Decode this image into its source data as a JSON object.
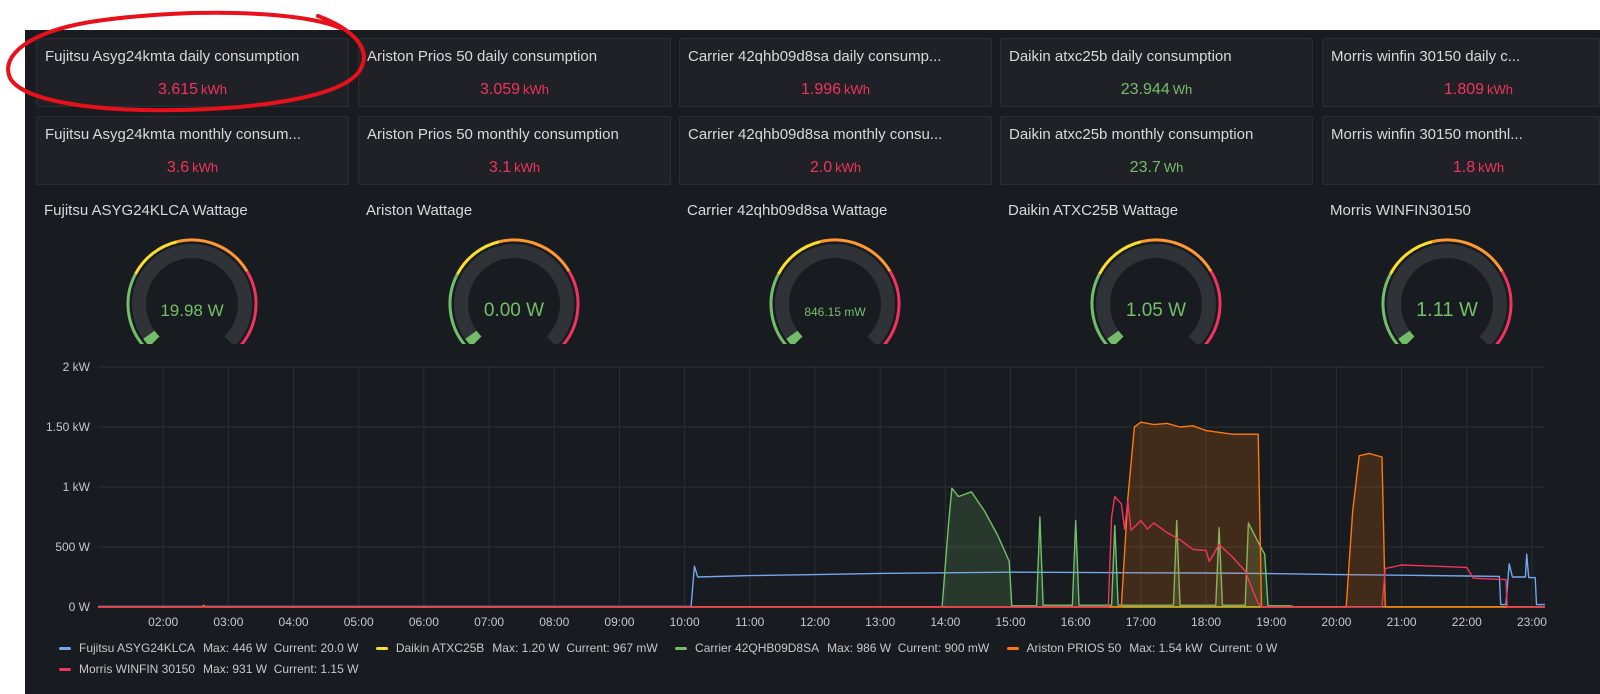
{
  "stats_daily": [
    {
      "title": "Fujitsu Asyg24kmta daily consumption",
      "value": "3.615",
      "unit": "kWh",
      "color": "#f2335e"
    },
    {
      "title": "Ariston Prios 50 daily consumption",
      "value": "3.059",
      "unit": "kWh",
      "color": "#f2335e"
    },
    {
      "title": "Carrier 42qhb09d8sa daily consump...",
      "value": "1.996",
      "unit": "kWh",
      "color": "#f2335e"
    },
    {
      "title": "Daikin atxc25b daily consumption",
      "value": "23.944",
      "unit": "Wh",
      "color": "#73bf69"
    },
    {
      "title": "Morris winfin 30150 daily c...",
      "value": "1.809",
      "unit": "kWh",
      "color": "#f2335e"
    }
  ],
  "stats_monthly": [
    {
      "title": "Fujitsu Asyg24kmta monthly consum...",
      "value": "3.6",
      "unit": "kWh",
      "color": "#f2335e"
    },
    {
      "title": "Ariston Prios 50 monthly consumption",
      "value": "3.1",
      "unit": "kWh",
      "color": "#f2335e"
    },
    {
      "title": "Carrier 42qhb09d8sa monthly consu...",
      "value": "2.0",
      "unit": "kWh",
      "color": "#f2335e"
    },
    {
      "title": "Daikin atxc25b monthly consumption",
      "value": "23.7",
      "unit": "Wh",
      "color": "#73bf69"
    },
    {
      "title": "Morris winfin 30150 monthl...",
      "value": "1.8",
      "unit": "kWh",
      "color": "#f2335e"
    }
  ],
  "gauges": [
    {
      "title": "Fujitsu ASYG24KLCA Wattage",
      "value": "19.98 W",
      "level": 0.02
    },
    {
      "title": "Ariston Wattage",
      "value": "0.00 W",
      "level": 0.0
    },
    {
      "title": "Carrier 42qhb09d8sa Wattage",
      "value": "846.15 mW",
      "level": 0.01
    },
    {
      "title": "Daikin ATXC25B Wattage",
      "value": "1.05 W",
      "level": 0.01
    },
    {
      "title": "Morris WINFIN30150",
      "value": "1.11 W",
      "level": 0.01
    }
  ],
  "gauge_colors": {
    "value_text": "#73bf69",
    "track": "#2f3237",
    "low": "#73bf69",
    "mid": "#fade2a",
    "high": "#ff9830",
    "max": "#f2335e"
  },
  "chart_data": {
    "type": "line",
    "x_ticks": [
      "02:00",
      "03:00",
      "04:00",
      "05:00",
      "06:00",
      "07:00",
      "08:00",
      "09:00",
      "10:00",
      "11:00",
      "12:00",
      "13:00",
      "14:00",
      "15:00",
      "16:00",
      "17:00",
      "18:00",
      "19:00",
      "20:00",
      "21:00",
      "22:00",
      "23:00"
    ],
    "y_ticks": [
      "0 W",
      "500 W",
      "1 kW",
      "1.50 kW",
      "2 kW"
    ],
    "x_range_hours": [
      1.0,
      23.2
    ],
    "ylim_watts": [
      0,
      2000
    ],
    "series": [
      {
        "name": "Fujitsu ASYG24KLCA",
        "color": "#73a7f2",
        "fill": false,
        "max": "446 W",
        "current": "20.0 W",
        "points": [
          [
            1.0,
            5
          ],
          [
            10.1,
            5
          ],
          [
            10.15,
            340
          ],
          [
            10.2,
            250
          ],
          [
            11,
            262
          ],
          [
            12,
            270
          ],
          [
            13,
            280
          ],
          [
            14,
            285
          ],
          [
            15,
            290
          ],
          [
            16,
            288
          ],
          [
            17,
            285
          ],
          [
            18,
            283
          ],
          [
            19,
            278
          ],
          [
            20,
            270
          ],
          [
            21,
            265
          ],
          [
            22,
            258
          ],
          [
            22.5,
            255
          ],
          [
            22.52,
            20
          ],
          [
            22.6,
            20
          ],
          [
            22.65,
            360
          ],
          [
            22.7,
            250
          ],
          [
            22.9,
            250
          ],
          [
            22.92,
            440
          ],
          [
            22.95,
            245
          ],
          [
            23.05,
            245
          ],
          [
            23.07,
            20
          ],
          [
            23.2,
            20
          ]
        ]
      },
      {
        "name": "Daikin ATXC25B",
        "color": "#fade2a",
        "fill": false,
        "max": "1.20 W",
        "current": "967 mW",
        "points": [
          [
            1.0,
            1
          ],
          [
            23.2,
            1
          ]
        ]
      },
      {
        "name": "Carrier 42QHB09D8SA",
        "color": "#73bf69",
        "fill": true,
        "max": "986 W",
        "current": "900 mW",
        "points": [
          [
            1.0,
            2
          ],
          [
            13.95,
            2
          ],
          [
            14.05,
            700
          ],
          [
            14.1,
            990
          ],
          [
            14.2,
            920
          ],
          [
            14.4,
            960
          ],
          [
            14.6,
            800
          ],
          [
            14.8,
            600
          ],
          [
            14.9,
            480
          ],
          [
            14.98,
            380
          ],
          [
            15.02,
            10
          ],
          [
            15.4,
            10
          ],
          [
            15.45,
            750
          ],
          [
            15.5,
            15
          ],
          [
            15.95,
            15
          ],
          [
            16.0,
            720
          ],
          [
            16.05,
            15
          ],
          [
            16.55,
            15
          ],
          [
            16.6,
            680
          ],
          [
            16.65,
            15
          ],
          [
            17.5,
            15
          ],
          [
            17.55,
            720
          ],
          [
            17.6,
            15
          ],
          [
            18.15,
            15
          ],
          [
            18.2,
            660
          ],
          [
            18.25,
            15
          ],
          [
            18.6,
            15
          ],
          [
            18.65,
            700
          ],
          [
            18.8,
            540
          ],
          [
            18.9,
            440
          ],
          [
            18.95,
            10
          ],
          [
            19.3,
            10
          ],
          [
            19.35,
            2
          ],
          [
            23.2,
            2
          ]
        ]
      },
      {
        "name": "Ariston PRIOS 50",
        "color": "#ff780a",
        "fill": true,
        "max": "1.54 kW",
        "current": "0 W",
        "points": [
          [
            1.0,
            0
          ],
          [
            2.6,
            0
          ],
          [
            2.62,
            15
          ],
          [
            2.65,
            0
          ],
          [
            16.7,
            0
          ],
          [
            16.8,
            900
          ],
          [
            16.9,
            1500
          ],
          [
            17.0,
            1540
          ],
          [
            17.2,
            1520
          ],
          [
            17.4,
            1530
          ],
          [
            17.6,
            1500
          ],
          [
            17.8,
            1510
          ],
          [
            18.0,
            1470
          ],
          [
            18.4,
            1440
          ],
          [
            18.8,
            1440
          ],
          [
            18.85,
            0
          ],
          [
            20.15,
            0
          ],
          [
            20.25,
            800
          ],
          [
            20.35,
            1260
          ],
          [
            20.5,
            1280
          ],
          [
            20.7,
            1250
          ],
          [
            20.75,
            0
          ],
          [
            23.2,
            0
          ]
        ]
      },
      {
        "name": "Morris WINFIN 30150",
        "color": "#f2335e",
        "fill": false,
        "max": "931 W",
        "current": "1.15 W",
        "points": [
          [
            1.0,
            1
          ],
          [
            16.5,
            1
          ],
          [
            16.55,
            750
          ],
          [
            16.6,
            920
          ],
          [
            16.7,
            860
          ],
          [
            16.75,
            650
          ],
          [
            16.8,
            880
          ],
          [
            16.85,
            640
          ],
          [
            17.0,
            720
          ],
          [
            17.1,
            650
          ],
          [
            17.2,
            700
          ],
          [
            17.4,
            620
          ],
          [
            17.6,
            560
          ],
          [
            17.8,
            480
          ],
          [
            18.0,
            470
          ],
          [
            18.05,
            380
          ],
          [
            18.2,
            520
          ],
          [
            18.4,
            420
          ],
          [
            18.6,
            300
          ],
          [
            18.7,
            160
          ],
          [
            18.8,
            30
          ],
          [
            18.85,
            1
          ],
          [
            20.7,
            1
          ],
          [
            20.75,
            320
          ],
          [
            21.0,
            350
          ],
          [
            21.5,
            340
          ],
          [
            22.0,
            330
          ],
          [
            22.1,
            240
          ],
          [
            22.5,
            230
          ],
          [
            22.6,
            230
          ],
          [
            22.62,
            1
          ],
          [
            23.2,
            1
          ]
        ]
      }
    ]
  },
  "annotation": {
    "color": "#e8101a"
  }
}
